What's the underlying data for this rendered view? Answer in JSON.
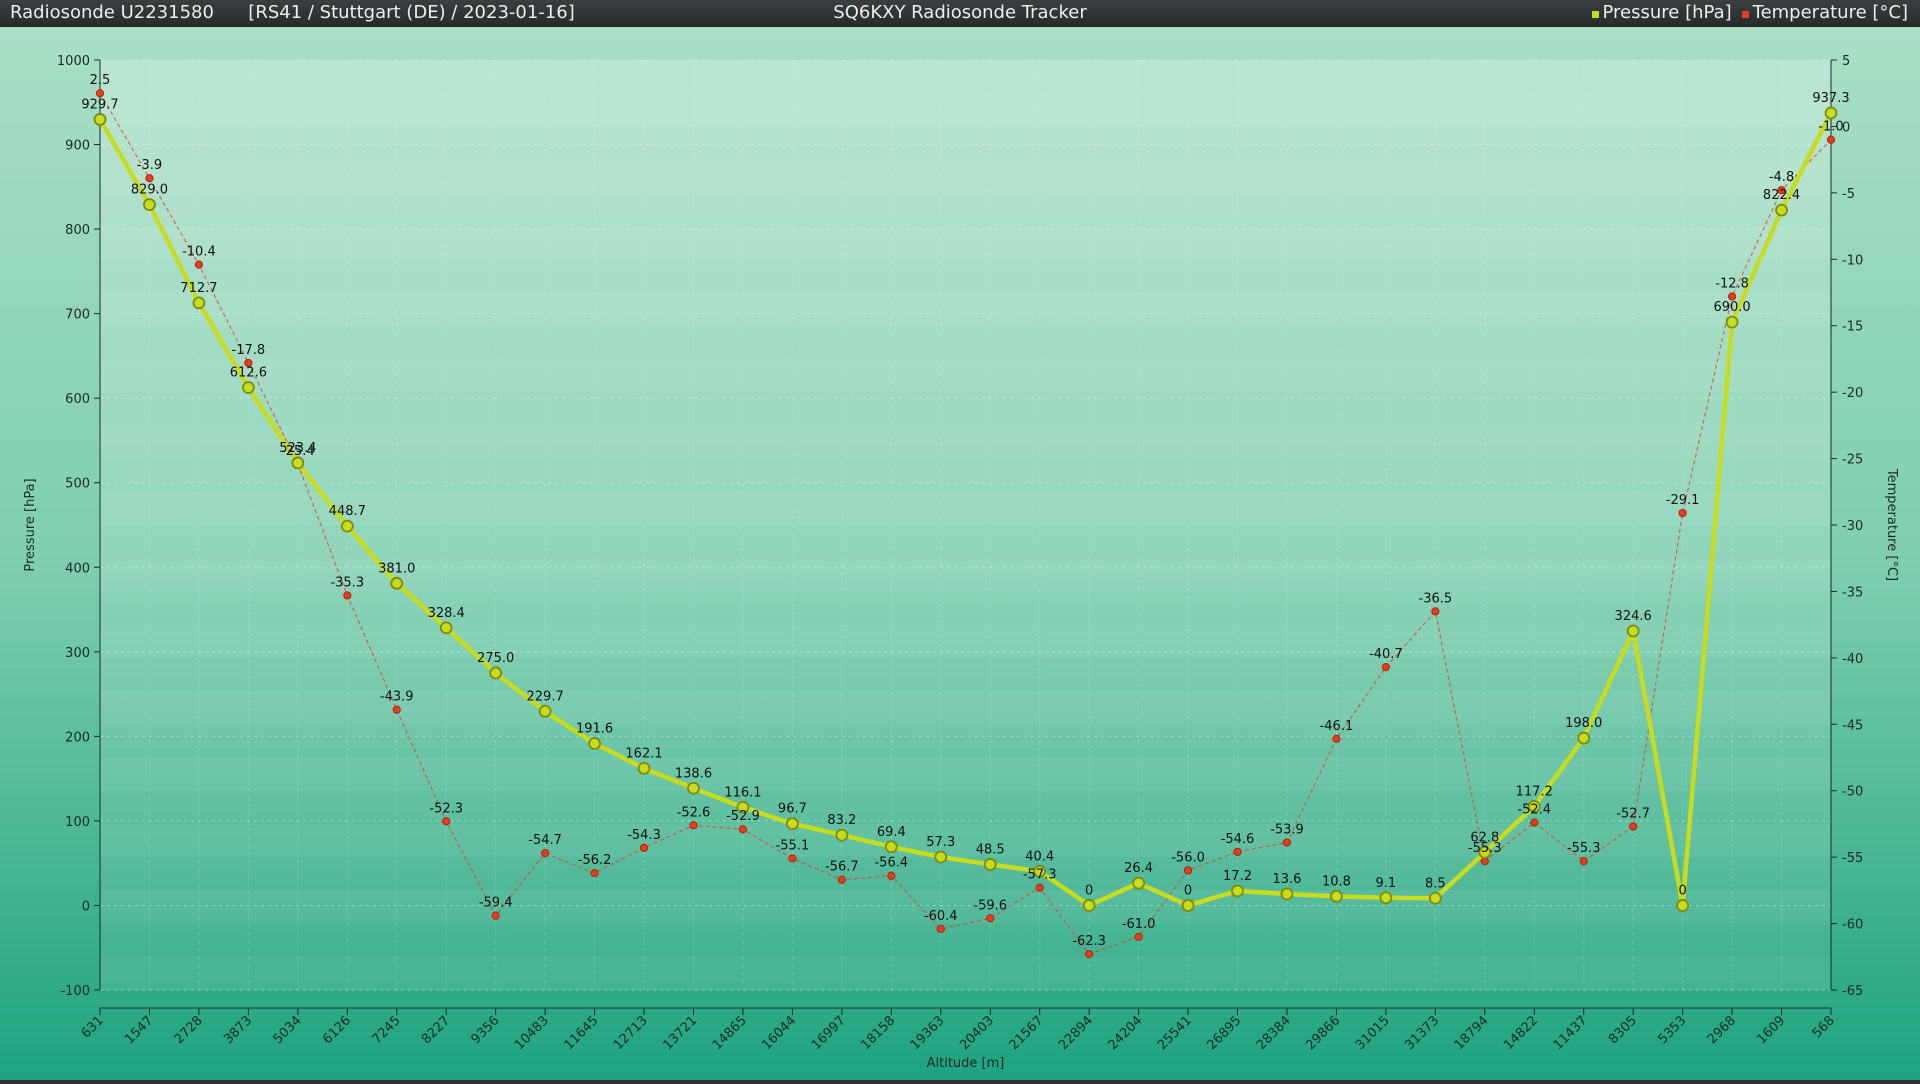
{
  "header": {
    "sonde_id": "Radiosonde U2231580",
    "flight_info": "[RS41 / Stuttgart (DE) / 2023-01-16]",
    "app_title": "SQ6KXY Radiosonde Tracker"
  },
  "colors": {
    "pressure": "#c8dc1e",
    "temperature": "#e0401e",
    "background_top": "#a9dfc6",
    "background_bottom": "#23a47f"
  },
  "chart_data": {
    "type": "line",
    "xlabel": "Altitude [m]",
    "ylabel_left": "Pressure [hPa]",
    "ylabel_right": "Temperature [°C]",
    "ylim_left": [
      -100,
      1000
    ],
    "ylim_right": [
      -65,
      5
    ],
    "yticks_left": [
      "-100",
      "0",
      "100",
      "200",
      "300",
      "400",
      "500",
      "600",
      "700",
      "800",
      "900",
      "1000"
    ],
    "yticks_right": [
      "-65",
      "-60",
      "-55",
      "-50",
      "-45",
      "-40",
      "-35",
      "-30",
      "-25",
      "-20",
      "-15",
      "-10",
      "-5",
      "0",
      "5"
    ],
    "grid": true,
    "legend_position": "top-right",
    "categories": [
      "631",
      "1547",
      "2728",
      "3873",
      "5034",
      "6126",
      "7245",
      "8227",
      "9356",
      "10483",
      "11645",
      "12713",
      "13721",
      "14865",
      "16044",
      "16997",
      "18158",
      "19363",
      "20403",
      "21567",
      "22894",
      "24204",
      "25541",
      "26895",
      "28384",
      "29866",
      "31015",
      "31373",
      "18794",
      "14822",
      "11437",
      "8305",
      "5353",
      "2968",
      "1609",
      "568"
    ],
    "series": [
      {
        "name": "Pressure [hPa]",
        "axis": "left",
        "values": [
          929.7,
          829.0,
          712.7,
          612.6,
          523.4,
          448.7,
          381.0,
          328.4,
          275.0,
          229.7,
          191.6,
          162.1,
          138.6,
          116.1,
          96.7,
          83.2,
          69.4,
          57.3,
          48.5,
          40.4,
          0,
          26.4,
          0,
          17.2,
          13.6,
          10.8,
          9.1,
          8.5,
          62.8,
          117.2,
          198.0,
          324.6,
          0,
          690.0,
          822.4,
          937.3
        ],
        "labels": [
          "929.7",
          "829.0",
          "712.7",
          "612.6",
          "523.4",
          "448.7",
          "381.0",
          "328.4",
          "275.0",
          "229.7",
          "191.6",
          "162.1",
          "138.6",
          "116.1",
          "96.7",
          "83.2",
          "69.4",
          "57.3",
          "48.5",
          "40.4",
          "0",
          "26.4",
          "0",
          "17.2",
          "13.6",
          "10.8",
          "9.1",
          "8.5",
          "62.8",
          "117.2",
          "198.0",
          "324.6",
          "0",
          "690.0",
          "822.4",
          "937.3"
        ]
      },
      {
        "name": "Temperature [°C]",
        "axis": "right",
        "values": [
          2.5,
          -3.9,
          -10.4,
          -17.8,
          -25.4,
          -35.3,
          -43.9,
          -52.3,
          -59.4,
          -54.7,
          -56.2,
          -54.3,
          -52.6,
          -52.9,
          -55.1,
          -56.7,
          -56.4,
          -60.4,
          -59.6,
          -57.3,
          -62.3,
          -61.0,
          -56.0,
          -54.6,
          -53.9,
          -46.1,
          -40.7,
          -36.5,
          -55.3,
          -52.4,
          -55.3,
          -52.7,
          -29.1,
          -12.8,
          -4.8,
          -1.0
        ],
        "labels": [
          "2.5",
          "-3.9",
          "-10.4",
          "-17.8",
          "-25.4",
          "-35.3",
          "-43.9",
          "-52.3",
          "-59.4",
          "-54.7",
          "-56.2",
          "-54.3",
          "-52.6",
          "-52.9",
          "-55.1",
          "-56.7",
          "-56.4",
          "-60.4",
          "-59.6",
          "-57.3",
          "-62.3",
          "-61.0",
          "-56.0",
          "-54.6",
          "-53.9",
          "-46.1",
          "-40.7",
          "-36.5",
          "-55.3",
          "-52.4",
          "-55.3",
          "-52.7",
          "-29.1",
          "-12.8",
          "-4.8",
          "-1.0"
        ]
      }
    ]
  }
}
